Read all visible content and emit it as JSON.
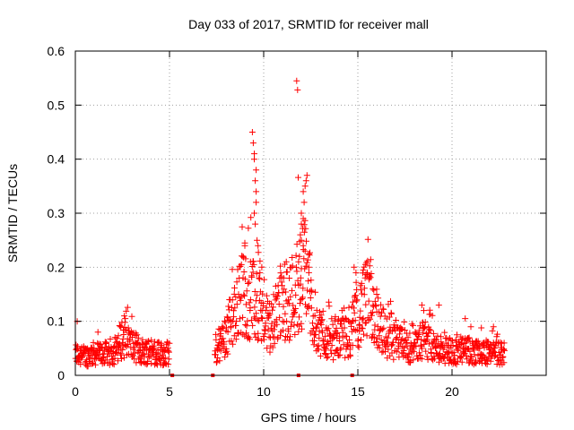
{
  "chart_data": {
    "type": "scatter",
    "title": "Day 033 of 2017, SRMTID for receiver mall",
    "xlabel": "GPS time / hours",
    "ylabel": "SRMTID / TECUs",
    "xlim": [
      0,
      25
    ],
    "ylim": [
      0,
      0.6
    ],
    "x_ticks": [
      0,
      5,
      10,
      15,
      20
    ],
    "x_tick_labels": [
      "0",
      "5",
      "10",
      "15",
      "20"
    ],
    "y_ticks": [
      0,
      0.1,
      0.2,
      0.3,
      0.4,
      0.5,
      0.6
    ],
    "y_tick_labels": [
      "0",
      "0.1",
      "0.2",
      "0.3",
      "0.4",
      "0.5",
      "0.6"
    ],
    "grid": true,
    "marker": "+",
    "series": [
      {
        "name": "SRMTID",
        "color": "#ff0000",
        "envelope": [
          [
            0.0,
            0.04
          ],
          [
            0.5,
            0.035
          ],
          [
            1.0,
            0.04
          ],
          [
            1.5,
            0.04
          ],
          [
            2.0,
            0.04
          ],
          [
            2.5,
            0.07
          ],
          [
            3.0,
            0.055
          ],
          [
            3.5,
            0.045
          ],
          [
            4.0,
            0.045
          ],
          [
            4.5,
            0.04
          ],
          [
            5.0,
            0.04
          ],
          [
            7.4,
            0.04
          ],
          [
            7.8,
            0.06
          ],
          [
            8.2,
            0.09
          ],
          [
            8.6,
            0.13
          ],
          [
            9.0,
            0.15
          ],
          [
            9.4,
            0.14
          ],
          [
            9.7,
            0.12
          ],
          [
            10.0,
            0.1
          ],
          [
            10.4,
            0.09
          ],
          [
            10.8,
            0.12
          ],
          [
            11.2,
            0.14
          ],
          [
            11.6,
            0.15
          ],
          [
            12.0,
            0.18
          ],
          [
            12.3,
            0.2
          ],
          [
            12.6,
            0.11
          ],
          [
            13.0,
            0.08
          ],
          [
            13.5,
            0.06
          ],
          [
            14.0,
            0.07
          ],
          [
            14.5,
            0.07
          ],
          [
            15.0,
            0.11
          ],
          [
            15.5,
            0.14
          ],
          [
            16.0,
            0.11
          ],
          [
            16.5,
            0.07
          ],
          [
            17.0,
            0.06
          ],
          [
            17.5,
            0.055
          ],
          [
            18.0,
            0.05
          ],
          [
            18.5,
            0.07
          ],
          [
            19.0,
            0.05
          ],
          [
            19.5,
            0.05
          ],
          [
            20.0,
            0.045
          ],
          [
            21.0,
            0.045
          ],
          [
            22.0,
            0.04
          ],
          [
            22.8,
            0.04
          ]
        ],
        "gap_markers_x": [
          5.15,
          7.3,
          11.85,
          14.7
        ],
        "spikes": [
          [
            9.4,
            0.45
          ],
          [
            9.45,
            0.43
          ],
          [
            9.5,
            0.41
          ],
          [
            9.5,
            0.4
          ],
          [
            9.6,
            0.38
          ],
          [
            9.55,
            0.36
          ],
          [
            9.6,
            0.34
          ],
          [
            9.6,
            0.32
          ],
          [
            9.5,
            0.3
          ],
          [
            9.55,
            0.28
          ],
          [
            9.65,
            0.25
          ],
          [
            9.7,
            0.24
          ],
          [
            9.0,
            0.245
          ],
          [
            9.0,
            0.24
          ],
          [
            8.9,
            0.22
          ],
          [
            9.3,
            0.21
          ],
          [
            9.9,
            0.2
          ],
          [
            9.8,
            0.19
          ],
          [
            11.75,
            0.545
          ],
          [
            11.8,
            0.528
          ],
          [
            12.3,
            0.37
          ],
          [
            12.25,
            0.36
          ],
          [
            12.2,
            0.35
          ],
          [
            12.1,
            0.34
          ],
          [
            12.15,
            0.32
          ],
          [
            12.0,
            0.3
          ],
          [
            12.1,
            0.29
          ],
          [
            12.0,
            0.28
          ],
          [
            11.95,
            0.26
          ],
          [
            12.0,
            0.25
          ],
          [
            12.1,
            0.24
          ],
          [
            11.9,
            0.22
          ],
          [
            12.2,
            0.23
          ],
          [
            11.85,
            0.21
          ],
          [
            11.2,
            0.21
          ],
          [
            12.4,
            0.2
          ],
          [
            12.4,
            0.19
          ],
          [
            14.8,
            0.2
          ],
          [
            14.9,
            0.19
          ],
          [
            15.4,
            0.205
          ],
          [
            15.5,
            0.19
          ],
          [
            15.6,
            0.18
          ],
          [
            15.8,
            0.16
          ],
          [
            16.0,
            0.15
          ],
          [
            15.2,
            0.17
          ],
          [
            2.6,
            0.11
          ],
          [
            2.65,
            0.105
          ],
          [
            18.4,
            0.13
          ],
          [
            18.5,
            0.12
          ],
          [
            19.3,
            0.13
          ],
          [
            20.7,
            0.105
          ],
          [
            21.0,
            0.09
          ],
          [
            22.2,
            0.09
          ],
          [
            1.2,
            0.08
          ],
          [
            0.1,
            0.1
          ]
        ]
      }
    ]
  }
}
